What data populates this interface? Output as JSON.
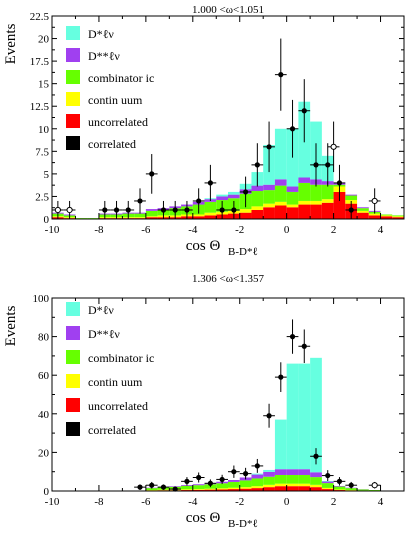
{
  "chart_data": [
    {
      "type": "bar",
      "stacked": true,
      "title": "1.000 <ω<1.051",
      "ylabel": "Events",
      "xlabel_main": "cos Θ",
      "xlabel_sub": "B-D*ℓ",
      "xlim": [
        -10,
        5
      ],
      "ylim": [
        0,
        22.5
      ],
      "yticks": [
        "0",
        "2.5",
        "5",
        "7.5",
        "10",
        "12.5",
        "15",
        "17.5",
        "20",
        "22.5"
      ],
      "ytick_values": [
        0,
        2.5,
        5,
        7.5,
        10,
        12.5,
        15,
        17.5,
        20,
        22.5
      ],
      "xticks": [
        "-10",
        "-8",
        "-6",
        "-4",
        "-2",
        "0",
        "2",
        "4"
      ],
      "xtick_values": [
        -10,
        -8,
        -6,
        -4,
        -2,
        0,
        2,
        4
      ],
      "bin_width": 0.5,
      "bin_starts": [
        -10,
        -9.5,
        -9,
        -8.5,
        -8,
        -7.5,
        -7,
        -6.5,
        -6,
        -5.5,
        -5,
        -4.5,
        -4,
        -3.5,
        -3,
        -2.5,
        -2,
        -1.5,
        -1,
        -0.5,
        0,
        0.5,
        1,
        1.5,
        2,
        2.5,
        3,
        3.5,
        4,
        4.5
      ],
      "series": [
        {
          "name": "correlated",
          "color": "#000000",
          "values": [
            0,
            0,
            0,
            0,
            0,
            0,
            0,
            0,
            0,
            0,
            0,
            0,
            0,
            0,
            0,
            0,
            0,
            0,
            0,
            0,
            0,
            0,
            0,
            0,
            0,
            0,
            0,
            0,
            0,
            0
          ]
        },
        {
          "name": "uncorrelated",
          "color": "#ff0000",
          "values": [
            0.2,
            0.1,
            0,
            0,
            0.1,
            0.1,
            0.1,
            0.1,
            0.2,
            0.2,
            0.2,
            0.3,
            0.3,
            0.4,
            0.5,
            0.6,
            0.7,
            1.0,
            1.3,
            1.5,
            1.3,
            1.6,
            1.6,
            1.8,
            3.0,
            1.7,
            0.7,
            0.4,
            0.3,
            0.2
          ]
        },
        {
          "name": "continuum",
          "color": "#ffff00",
          "values": [
            0.1,
            0.1,
            0,
            0,
            0.1,
            0.1,
            0.1,
            0.1,
            0.1,
            0.2,
            0.2,
            0.2,
            0.2,
            0.3,
            0.3,
            0.3,
            0.4,
            0.4,
            0.4,
            0.4,
            0.3,
            0.4,
            0.4,
            0.4,
            0.6,
            0.4,
            0.2,
            0.2,
            0.1,
            0.1
          ]
        },
        {
          "name": "combinatoric",
          "color": "#66ff00",
          "values": [
            0.3,
            0.2,
            0.1,
            0.1,
            0.3,
            0.3,
            0.4,
            0.4,
            0.6,
            0.6,
            0.8,
            0.9,
            1.1,
            1.2,
            1.3,
            1.4,
            1.7,
            1.7,
            1.5,
            1.8,
            1.4,
            2.0,
            1.8,
            1.6,
            0.2,
            0.5,
            0.3,
            0.2,
            0.1,
            0.1
          ]
        },
        {
          "name": "D**ℓν",
          "color": "#a040f0",
          "values": [
            0.1,
            0.1,
            0,
            0,
            0.1,
            0.1,
            0.1,
            0.1,
            0.2,
            0.2,
            0.2,
            0.2,
            0.3,
            0.3,
            0.4,
            0.4,
            0.5,
            0.6,
            0.6,
            0.7,
            0.6,
            0.6,
            0.6,
            0.4,
            0.2,
            0.1,
            0.1,
            0.1,
            0,
            0
          ]
        },
        {
          "name": "D*ℓν",
          "color": "#66ffe0",
          "values": [
            0,
            0,
            0,
            0,
            0,
            0,
            0,
            0,
            0,
            0,
            0,
            0,
            0,
            0.1,
            0.2,
            0.3,
            0.6,
            1.5,
            4.4,
            5.6,
            6.4,
            8.4,
            6.4,
            2.8,
            0,
            0,
            0,
            0,
            0,
            0
          ]
        }
      ],
      "data_points": {
        "filled_x": [
          -7.75,
          -7.25,
          -6.75,
          -6.25,
          -5.75,
          -5.25,
          -4.75,
          -4.25,
          -3.75,
          -3.25,
          -2.75,
          -2.25,
          -1.75,
          -1.25,
          -0.75,
          -0.25,
          0.25,
          0.75,
          1.25,
          1.75,
          2.25,
          2.75
        ],
        "filled_y": [
          1,
          1,
          1,
          2,
          5,
          1,
          1,
          1,
          2,
          4,
          1,
          1,
          3,
          6,
          8,
          16,
          10,
          12,
          6,
          6,
          4,
          1
        ],
        "filled_err": [
          1,
          1,
          1,
          1.4,
          2.2,
          1,
          1,
          1,
          1.4,
          2,
          1,
          1,
          1.7,
          2.4,
          2.8,
          4,
          3.2,
          3.5,
          2.4,
          2.4,
          2,
          1
        ],
        "open_x": [
          -9.75,
          -9.25,
          2.0,
          3.75
        ],
        "open_y": [
          1,
          1,
          8,
          2
        ],
        "open_err": [
          1,
          1,
          2.8,
          1.4
        ]
      },
      "legend": {
        "placement": "top-left",
        "labels": [
          "D*ℓν",
          "D**ℓν",
          "combinator ic",
          "contin uum",
          "uncorrelated",
          "correlated"
        ]
      }
    },
    {
      "type": "bar",
      "stacked": true,
      "title": "1.306 <ω<1.357",
      "ylabel": "Events",
      "xlabel_main": "cos Θ",
      "xlabel_sub": "B-D*ℓ",
      "xlim": [
        -10,
        5
      ],
      "ylim": [
        0,
        100
      ],
      "yticks": [
        "0",
        "20",
        "40",
        "60",
        "80",
        "100"
      ],
      "ytick_values": [
        0,
        20,
        40,
        60,
        80,
        100
      ],
      "xticks": [
        "-10",
        "-8",
        "-6",
        "-4",
        "-2",
        "0",
        "2",
        "4"
      ],
      "xtick_values": [
        -10,
        -8,
        -6,
        -4,
        -2,
        0,
        2,
        4
      ],
      "bin_width": 0.5,
      "bin_starts": [
        -10,
        -9.5,
        -9,
        -8.5,
        -8,
        -7.5,
        -7,
        -6.5,
        -6,
        -5.5,
        -5,
        -4.5,
        -4,
        -3.5,
        -3,
        -2.5,
        -2,
        -1.5,
        -1,
        -0.5,
        0,
        0.5,
        1,
        1.5,
        2,
        2.5,
        3,
        3.5,
        4,
        4.5
      ],
      "series": [
        {
          "name": "correlated",
          "color": "#000000",
          "values": [
            0,
            0,
            0,
            0,
            0,
            0,
            0,
            0,
            0,
            0,
            0,
            0,
            0,
            0,
            0,
            0,
            0,
            0,
            0,
            0,
            0,
            0,
            0,
            0,
            0,
            0,
            0,
            0,
            0,
            0
          ]
        },
        {
          "name": "uncorrelated",
          "color": "#ff0000",
          "values": [
            0,
            0,
            0,
            0,
            0,
            0,
            0,
            0,
            0.3,
            0.4,
            0.4,
            0.5,
            0.6,
            0.7,
            0.8,
            1.0,
            1.2,
            1.5,
            2.0,
            2.5,
            2.5,
            2.5,
            2.0,
            1.0,
            0.5,
            0.3,
            0.2,
            0.1,
            0,
            0
          ]
        },
        {
          "name": "continuum",
          "color": "#ffff00",
          "values": [
            0,
            0,
            0,
            0,
            0,
            0,
            0,
            0,
            0.2,
            0.3,
            0.3,
            0.4,
            0.4,
            0.5,
            0.6,
            0.7,
            0.8,
            1.0,
            1.2,
            1.3,
            1.3,
            1.3,
            1.2,
            0.6,
            0.3,
            0.2,
            0.1,
            0.1,
            0,
            0
          ]
        },
        {
          "name": "combinatoric",
          "color": "#66ff00",
          "values": [
            0,
            0,
            0,
            0,
            0,
            0,
            0,
            0,
            1.0,
            1.3,
            1.5,
            1.8,
            2.0,
            2.3,
            2.6,
            3.0,
            3.5,
            4.0,
            4.2,
            4.5,
            4.5,
            4.5,
            4.0,
            2.5,
            1.5,
            1.0,
            0.5,
            0.3,
            0,
            0
          ]
        },
        {
          "name": "D**ℓν",
          "color": "#a040f0",
          "values": [
            0,
            0,
            0,
            0,
            0,
            0,
            0,
            0,
            0.2,
            0.3,
            0.3,
            0.4,
            0.5,
            0.6,
            0.8,
            1.0,
            1.5,
            2.0,
            2.5,
            3.0,
            3.0,
            3.0,
            2.5,
            0.8,
            0.3,
            0.2,
            0.1,
            0,
            0,
            0
          ]
        },
        {
          "name": "D*ℓν",
          "color": "#66ffe0",
          "values": [
            0,
            0,
            0,
            0,
            0,
            0,
            0,
            0,
            0,
            0,
            0,
            0,
            0,
            0,
            0,
            0,
            0,
            0.5,
            1.0,
            25.7,
            54.7,
            54.7,
            59.3,
            0.3,
            0,
            0,
            0,
            0,
            0,
            0
          ]
        }
      ],
      "data_points": {
        "filled_x": [
          -6.25,
          -5.75,
          -5.25,
          -4.75,
          -4.25,
          -3.75,
          -3.25,
          -2.75,
          -2.25,
          -1.75,
          -1.25,
          -0.75,
          -0.25,
          0.25,
          0.75,
          1.25,
          1.75,
          2.25,
          2.75
        ],
        "filled_y": [
          2,
          3,
          2,
          1,
          5,
          7,
          4,
          6,
          10,
          9,
          13,
          39,
          59,
          80,
          75,
          18,
          8,
          5,
          3
        ],
        "filled_err": [
          1.4,
          1.7,
          1.4,
          1,
          2.2,
          2.6,
          2,
          2.4,
          3.2,
          3,
          3.6,
          6.2,
          7.7,
          8.9,
          8.7,
          4.2,
          2.8,
          2.2,
          1.7
        ],
        "open_x": [
          3.75
        ],
        "open_y": [
          3
        ],
        "open_err": [
          1.7
        ]
      },
      "legend": {
        "placement": "top-left",
        "labels": [
          "D*ℓν",
          "D**ℓν",
          "combinator ic",
          "contin uum",
          "uncorrelated",
          "correlated"
        ]
      }
    }
  ]
}
